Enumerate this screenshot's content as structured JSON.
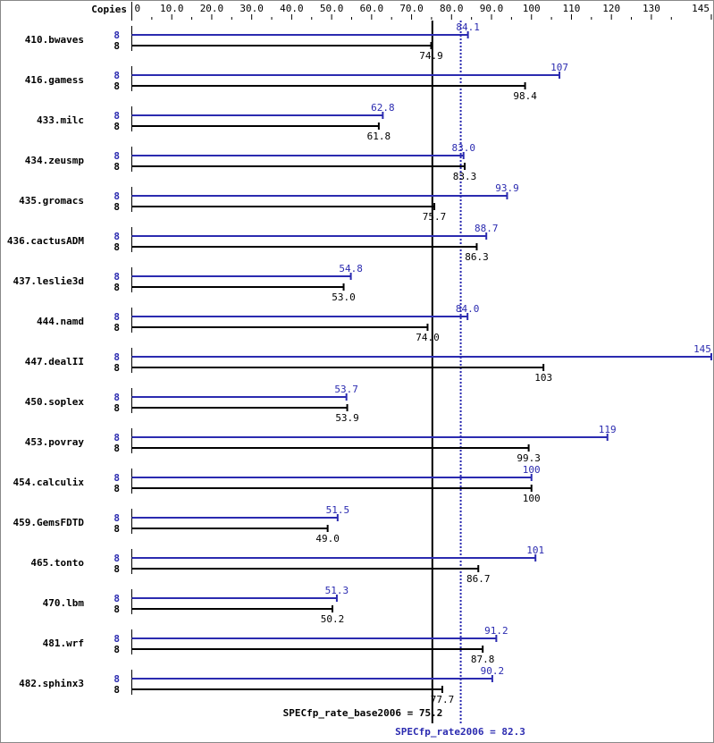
{
  "chart_data": {
    "type": "bar",
    "orientation": "horizontal",
    "copies_header": "Copies",
    "xlim": [
      0,
      145
    ],
    "tick_labels": [
      "0",
      "10.0",
      "20.0",
      "30.0",
      "40.0",
      "50.0",
      "60.0",
      "70.0",
      "80.0",
      "90.0",
      "100",
      "110",
      "120",
      "130",
      "145"
    ],
    "tick_values": [
      0,
      10,
      20,
      30,
      40,
      50,
      60,
      70,
      80,
      90,
      100,
      110,
      120,
      130,
      145
    ],
    "categories": [
      "410.bwaves",
      "416.gamess",
      "433.milc",
      "434.zeusmp",
      "435.gromacs",
      "436.cactusADM",
      "437.leslie3d",
      "444.namd",
      "447.dealII",
      "450.soplex",
      "453.povray",
      "454.calculix",
      "459.GemsFDTD",
      "465.tonto",
      "470.lbm",
      "481.wrf",
      "482.sphinx3"
    ],
    "series": [
      {
        "name": "peak",
        "color": "#2b2bb0",
        "copies": [
          8,
          8,
          8,
          8,
          8,
          8,
          8,
          8,
          8,
          8,
          8,
          8,
          8,
          8,
          8,
          8,
          8
        ],
        "values": [
          84.1,
          107,
          62.8,
          83.0,
          93.9,
          88.7,
          54.8,
          84.0,
          145,
          53.7,
          119,
          100,
          51.5,
          101,
          51.3,
          91.2,
          90.2
        ],
        "labels": [
          "84.1",
          "107",
          "62.8",
          "83.0",
          "93.9",
          "88.7",
          "54.8",
          "84.0",
          "145",
          "53.7",
          "119",
          "100",
          "51.5",
          "101",
          "51.3",
          "91.2",
          "90.2"
        ]
      },
      {
        "name": "base",
        "color": "#000000",
        "copies": [
          8,
          8,
          8,
          8,
          8,
          8,
          8,
          8,
          8,
          8,
          8,
          8,
          8,
          8,
          8,
          8,
          8
        ],
        "values": [
          74.9,
          98.4,
          61.8,
          83.3,
          75.7,
          86.3,
          53.0,
          74.0,
          103,
          53.9,
          99.3,
          100,
          49.0,
          86.7,
          50.2,
          87.8,
          77.7
        ],
        "labels": [
          "74.9",
          "98.4",
          "61.8",
          "83.3",
          "75.7",
          "86.3",
          "53.0",
          "74.0",
          "103",
          "53.9",
          "99.3",
          "100",
          "49.0",
          "86.7",
          "50.2",
          "87.8",
          "77.7"
        ]
      }
    ],
    "reference_lines": [
      {
        "label": "SPECfp_rate_base2006 = 75.2",
        "value": 75.2,
        "color": "#000000",
        "style": "solid"
      },
      {
        "label": "SPECfp_rate2006 = 82.3",
        "value": 82.3,
        "color": "#2b2bb0",
        "style": "dotted"
      }
    ]
  }
}
